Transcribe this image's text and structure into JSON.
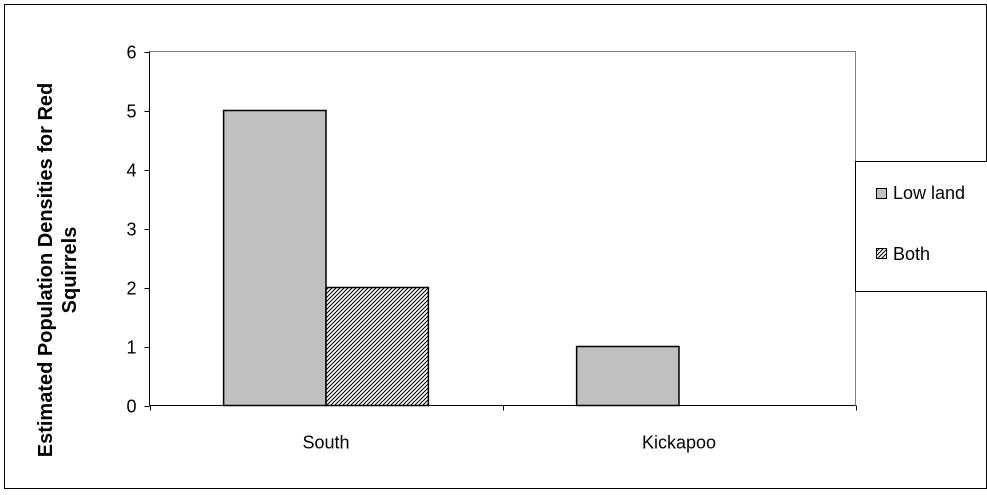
{
  "chart_data": {
    "type": "bar",
    "title": "",
    "xlabel": "",
    "ylabel_line1": "Estimated Population Densities for Red",
    "ylabel_line2": "Squirrels",
    "categories": [
      "South",
      "Kickapoo"
    ],
    "series": [
      {
        "name": "Low land",
        "values": [
          5,
          1
        ],
        "fill": "#c0c0c0",
        "pattern": "solid"
      },
      {
        "name": "Both",
        "values": [
          2,
          0
        ],
        "fill": "#ffffff",
        "pattern": "diagonal-hatch"
      }
    ],
    "ylim": [
      0,
      6
    ],
    "yticks": [
      "0",
      "1",
      "2",
      "3",
      "4",
      "5",
      "6"
    ],
    "grid": false,
    "legend_position": "right",
    "colors": {
      "plot_border": "#808080",
      "bar_outline": "#000000",
      "hatch": "#000000"
    }
  }
}
